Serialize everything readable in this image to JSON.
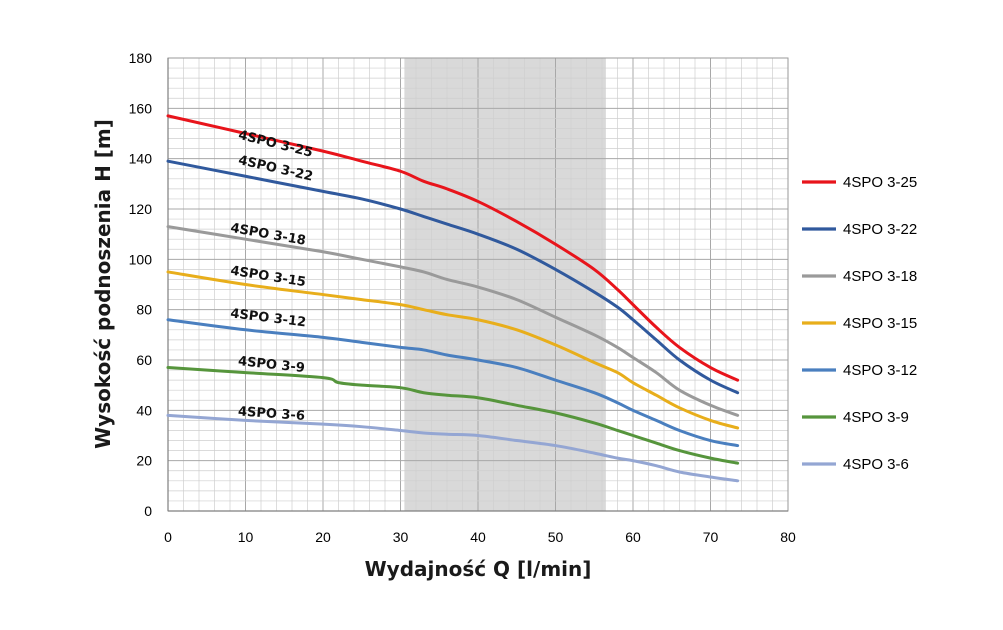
{
  "chart_data": {
    "type": "line",
    "xlabel": "Wydajność Q [l/min]",
    "ylabel": "Wysokość podnoszenia H [m]",
    "xlim": [
      0,
      80
    ],
    "ylim": [
      0,
      180
    ],
    "x_major_ticks": [
      0,
      10,
      20,
      30,
      40,
      50,
      60,
      70,
      80
    ],
    "y_major_ticks": [
      0,
      20,
      40,
      60,
      80,
      100,
      120,
      140,
      160,
      180
    ],
    "x_tick_labels": [
      "0",
      "10",
      "20",
      "30",
      "40",
      "50",
      "60",
      "70",
      "80"
    ],
    "y_tick_labels": [
      "0",
      "20",
      "40",
      "60",
      "80",
      "100",
      "120",
      "140",
      "160",
      "180"
    ],
    "x_minor_step": 2,
    "y_minor_step": 4,
    "grid": true,
    "shaded_region": {
      "x_from": 30.5,
      "x_to": 56.5,
      "color": "#d9d9d9"
    },
    "legend_position": "right",
    "series": [
      {
        "name": "4SPO 3-25",
        "color": "#e8141b",
        "label": "4SPO 3-25",
        "label_at": [
          9,
          148
        ],
        "label_rotation": 14,
        "points": [
          [
            0,
            157
          ],
          [
            10,
            150
          ],
          [
            20,
            143
          ],
          [
            25,
            139
          ],
          [
            30,
            135
          ],
          [
            33,
            131
          ],
          [
            36,
            128
          ],
          [
            40,
            123
          ],
          [
            45,
            115
          ],
          [
            50,
            106
          ],
          [
            55,
            96
          ],
          [
            58,
            88
          ],
          [
            60,
            82
          ],
          [
            63,
            73
          ],
          [
            66,
            65
          ],
          [
            70,
            57
          ],
          [
            73.5,
            52
          ]
        ]
      },
      {
        "name": "4SPO 3-22",
        "color": "#30599d",
        "label": "4SPO 3-22",
        "label_at": [
          9,
          138
        ],
        "label_rotation": 13,
        "points": [
          [
            0,
            139
          ],
          [
            10,
            133
          ],
          [
            20,
            127
          ],
          [
            25,
            124
          ],
          [
            30,
            120
          ],
          [
            33,
            117
          ],
          [
            36,
            114
          ],
          [
            40,
            110
          ],
          [
            45,
            104
          ],
          [
            50,
            96
          ],
          [
            55,
            87
          ],
          [
            58,
            81
          ],
          [
            60,
            76
          ],
          [
            63,
            68
          ],
          [
            66,
            60
          ],
          [
            70,
            52
          ],
          [
            73.5,
            47
          ]
        ]
      },
      {
        "name": "4SPO 3-18",
        "color": "#9a9a9a",
        "label": "4SPO 3-18",
        "label_at": [
          8,
          111
        ],
        "label_rotation": 10,
        "points": [
          [
            0,
            113
          ],
          [
            10,
            108
          ],
          [
            20,
            103
          ],
          [
            25,
            100
          ],
          [
            30,
            97
          ],
          [
            33,
            95
          ],
          [
            36,
            92
          ],
          [
            40,
            89
          ],
          [
            45,
            84
          ],
          [
            50,
            77
          ],
          [
            55,
            70
          ],
          [
            58,
            65
          ],
          [
            60,
            61
          ],
          [
            63,
            55
          ],
          [
            66,
            48
          ],
          [
            70,
            42
          ],
          [
            73.5,
            38
          ]
        ]
      },
      {
        "name": "4SPO 3-15",
        "color": "#e8ae1b",
        "label": "4SPO 3-15",
        "label_at": [
          8,
          94
        ],
        "label_rotation": 9,
        "points": [
          [
            0,
            95
          ],
          [
            10,
            90
          ],
          [
            20,
            86
          ],
          [
            25,
            84
          ],
          [
            30,
            82
          ],
          [
            33,
            80
          ],
          [
            36,
            78
          ],
          [
            40,
            76
          ],
          [
            45,
            72
          ],
          [
            50,
            66
          ],
          [
            55,
            59
          ],
          [
            58,
            55
          ],
          [
            60,
            51
          ],
          [
            63,
            46
          ],
          [
            66,
            41
          ],
          [
            70,
            36
          ],
          [
            73.5,
            33
          ]
        ]
      },
      {
        "name": "4SPO 3-12",
        "color": "#4a7fbf",
        "label": "4SPO 3-12",
        "label_at": [
          8,
          77
        ],
        "label_rotation": 7,
        "points": [
          [
            0,
            76
          ],
          [
            10,
            72
          ],
          [
            20,
            69
          ],
          [
            25,
            67
          ],
          [
            30,
            65
          ],
          [
            33,
            64
          ],
          [
            36,
            62
          ],
          [
            40,
            60
          ],
          [
            45,
            57
          ],
          [
            50,
            52
          ],
          [
            55,
            47
          ],
          [
            58,
            43
          ],
          [
            60,
            40
          ],
          [
            63,
            36
          ],
          [
            66,
            32
          ],
          [
            70,
            28
          ],
          [
            73.5,
            26
          ]
        ]
      },
      {
        "name": "4SPO 3-9",
        "color": "#56953c",
        "label": "4SPO 3-9",
        "label_at": [
          9,
          58
        ],
        "label_rotation": 6,
        "points": [
          [
            0,
            57
          ],
          [
            10,
            55
          ],
          [
            20,
            53
          ],
          [
            22,
            51
          ],
          [
            25,
            50
          ],
          [
            30,
            49
          ],
          [
            33,
            47
          ],
          [
            36,
            46
          ],
          [
            40,
            45
          ],
          [
            45,
            42
          ],
          [
            50,
            39
          ],
          [
            55,
            35
          ],
          [
            58,
            32
          ],
          [
            60,
            30
          ],
          [
            63,
            27
          ],
          [
            66,
            24
          ],
          [
            70,
            21
          ],
          [
            73.5,
            19
          ]
        ]
      },
      {
        "name": "4SPO 3-6",
        "color": "#94a6d3",
        "label": "4SPO 3-6",
        "label_at": [
          9,
          38
        ],
        "label_rotation": 4,
        "points": [
          [
            0,
            38
          ],
          [
            10,
            36
          ],
          [
            20,
            34.5
          ],
          [
            25,
            33.5
          ],
          [
            30,
            32
          ],
          [
            33,
            31
          ],
          [
            36,
            30.5
          ],
          [
            40,
            30
          ],
          [
            45,
            28
          ],
          [
            50,
            26
          ],
          [
            55,
            23
          ],
          [
            58,
            21
          ],
          [
            60,
            20
          ],
          [
            63,
            18
          ],
          [
            66,
            15.5
          ],
          [
            70,
            13.5
          ],
          [
            73.5,
            12
          ]
        ]
      }
    ]
  }
}
